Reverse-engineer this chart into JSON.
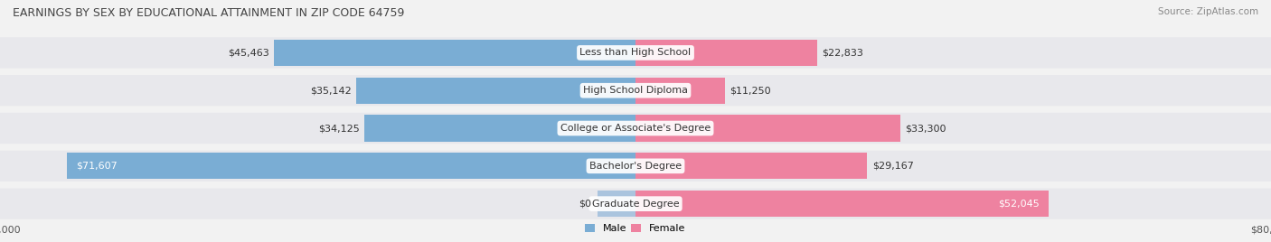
{
  "title": "EARNINGS BY SEX BY EDUCATIONAL ATTAINMENT IN ZIP CODE 64759",
  "source": "Source: ZipAtlas.com",
  "categories": [
    "Less than High School",
    "High School Diploma",
    "College or Associate's Degree",
    "Bachelor's Degree",
    "Graduate Degree"
  ],
  "male_values": [
    45463,
    35142,
    34125,
    71607,
    0
  ],
  "female_values": [
    22833,
    11250,
    33300,
    29167,
    52045
  ],
  "male_labels": [
    "$45,463",
    "$35,142",
    "$34,125",
    "$71,607",
    "$0"
  ],
  "female_labels": [
    "$22,833",
    "$11,250",
    "$33,300",
    "$29,167",
    "$52,045"
  ],
  "male_color": "#7aadd4",
  "female_color": "#ee82a0",
  "male_grad_color": "#aac4de",
  "axis_max": 80000,
  "background_color": "#f2f2f2",
  "row_bg_color": "#e8e8ec",
  "title_fontsize": 9,
  "source_fontsize": 7.5,
  "label_fontsize": 8,
  "category_fontsize": 8,
  "tick_fontsize": 8,
  "legend_fontsize": 8
}
